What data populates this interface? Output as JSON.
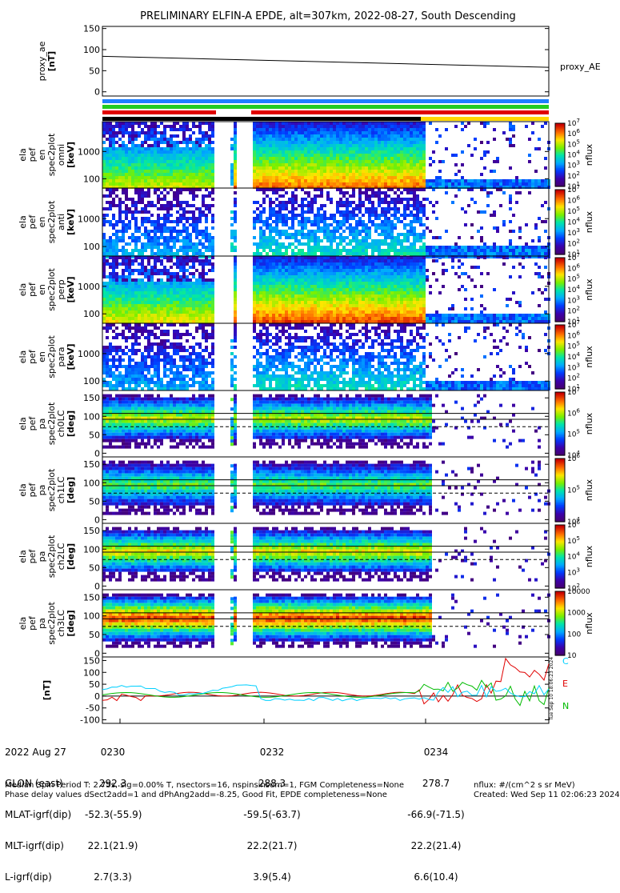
{
  "title": "PRELIMINARY ELFIN-A EPDE, alt=307km, 2022-08-27, South Descending",
  "colors": {
    "bar_blue": "#1e7fff",
    "bar_green": "#22cc22",
    "bar_red": "#e00000",
    "bar_black": "#000000",
    "bar_yellow": "#ffd700",
    "trace_e": "#e00000",
    "trace_n": "#00bb00",
    "trace_c": "#00d0ff"
  },
  "chart_data": [
    {
      "type": "line",
      "panel": "proxy_ae",
      "ylabel_lines": [
        "proxy_ae",
        "[nT]"
      ],
      "ylim": [
        -10,
        155
      ],
      "yticks": [
        "0",
        "50",
        "100",
        "150"
      ],
      "series": [
        {
          "name": "proxy_AE",
          "x": [
            0,
            1
          ],
          "values": [
            84,
            58
          ]
        }
      ]
    },
    {
      "type": "heatmap",
      "panel": "en_spectra_omni",
      "ylabel_lines": [
        "ela",
        "pef",
        "en",
        "spec2plot",
        "omni",
        "[keV]"
      ],
      "yticks": [
        "100",
        "1000"
      ],
      "colorbar_label": "nflux",
      "colorbar_ticks": [
        "10^1",
        "10^2",
        "10^3",
        "10^4",
        "10^5",
        "10^6",
        "10^7"
      ]
    },
    {
      "type": "heatmap",
      "panel": "en_spectra_anti",
      "ylabel_lines": [
        "ela",
        "pef",
        "en",
        "spec2plot",
        "anti",
        "[keV]"
      ],
      "yticks": [
        "100",
        "1000"
      ],
      "colorbar_label": "nflux",
      "colorbar_ticks": [
        "10^1",
        "10^2",
        "10^3",
        "10^4",
        "10^5",
        "10^6",
        "10^7"
      ]
    },
    {
      "type": "heatmap",
      "panel": "en_spectra_perp",
      "ylabel_lines": [
        "ela",
        "pef",
        "en",
        "spec2plot",
        "perp",
        "[keV]"
      ],
      "yticks": [
        "100",
        "1000"
      ],
      "colorbar_label": "nflux",
      "colorbar_ticks": [
        "10^1",
        "10^2",
        "10^3",
        "10^4",
        "10^5",
        "10^6",
        "10^7"
      ]
    },
    {
      "type": "heatmap",
      "panel": "en_spectra_para",
      "ylabel_lines": [
        "ela",
        "pef",
        "en",
        "spec2plot",
        "para",
        "[keV]"
      ],
      "yticks": [
        "100",
        "1000"
      ],
      "colorbar_label": "nflux",
      "colorbar_ticks": [
        "10^1",
        "10^2",
        "10^3",
        "10^4",
        "10^5",
        "10^6",
        "10^7"
      ]
    },
    {
      "type": "heatmap",
      "panel": "pa_ch0LC",
      "ylabel_lines": [
        "ela",
        "pef",
        "pa",
        "spec2plot",
        "ch0LC",
        "[deg]"
      ],
      "yticks": [
        "0",
        "50",
        "100",
        "150"
      ],
      "colorbar_label": "nflux",
      "colorbar_ticks": [
        "10^4",
        "10^5",
        "10^6",
        "10^7"
      ]
    },
    {
      "type": "heatmap",
      "panel": "pa_ch1LC",
      "ylabel_lines": [
        "ela",
        "pef",
        "pa",
        "spec2plot",
        "ch1LC",
        "[deg]"
      ],
      "yticks": [
        "0",
        "50",
        "100",
        "150"
      ],
      "colorbar_label": "nflux",
      "colorbar_ticks": [
        "10^4",
        "10^5",
        "10^6"
      ]
    },
    {
      "type": "heatmap",
      "panel": "pa_ch2LC",
      "ylabel_lines": [
        "ela",
        "pef",
        "pa",
        "spec2plot",
        "ch2LC",
        "[deg]"
      ],
      "yticks": [
        "0",
        "50",
        "100",
        "150"
      ],
      "colorbar_label": "nflux",
      "colorbar_ticks": [
        "10^2",
        "10^3",
        "10^4",
        "10^5",
        "10^6"
      ]
    },
    {
      "type": "heatmap",
      "panel": "pa_ch3LC",
      "ylabel_lines": [
        "ela",
        "pef",
        "pa",
        "spec2plot",
        "ch3LC",
        "[deg]"
      ],
      "yticks": [
        "0",
        "50",
        "100",
        "150"
      ],
      "colorbar_label": "nflux",
      "colorbar_ticks": [
        "10",
        "100",
        "1000",
        "10000"
      ]
    },
    {
      "type": "line",
      "panel": "fgm_nt",
      "ylabel_lines": [
        "[nT]"
      ],
      "ylim": [
        -115,
        165
      ],
      "yticks": [
        "-100",
        "-50",
        "0",
        "50",
        "100",
        "150"
      ],
      "legend": [
        "C",
        "E",
        "N"
      ]
    }
  ],
  "xaxis": {
    "row_labels": [
      "2022 Aug 27",
      "GLON (east)",
      "MLAT-igrf(dip)",
      "MLT-igrf(dip)",
      "L-igrf(dip)"
    ],
    "columns": [
      {
        "time": "0230",
        "glon": "292.3",
        "mlat": "-52.3(-55.9)",
        "mlt": "22.1(21.9)",
        "l": "2.7(3.3)"
      },
      {
        "time": "0232",
        "glon": "288.3",
        "mlat": "-59.5(-63.7)",
        "mlt": "22.2(21.7)",
        "l": "3.9(5.4)"
      },
      {
        "time": "0234",
        "glon": "278.7",
        "mlat": "-66.9(-71.5)",
        "mlt": "22.2(21.4)",
        "l": "6.6(10.4)"
      }
    ]
  },
  "footer": {
    "line1": "Median Spin Period T: 2.75s, sig=0.00% T, nsectors=16, nspinsinsum=1, FGM Completeness=None",
    "line2": "Phase delay values dSect2add=1 and dPhAng2add=-8.25, Good Fit, EPDE completeness=None",
    "units": "nflux: #/(cm^2 s sr MeV)",
    "created": "Created: Wed Sep 11 02:06:23 2024"
  },
  "side_stamp": "Tue Sep 10 18:06:23 2024"
}
